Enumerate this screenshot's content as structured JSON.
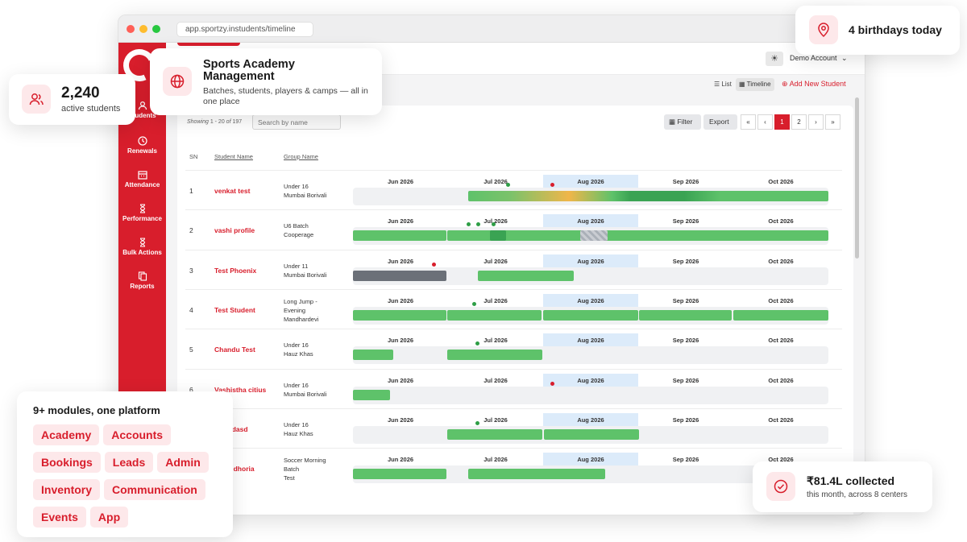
{
  "browser": {
    "url": "app.sportzy.instudents/timeline"
  },
  "sidebar": {
    "items": [
      {
        "label": "Students",
        "icon": "students-icon"
      },
      {
        "label": "Renewals",
        "icon": "clock-icon"
      },
      {
        "label": "Attendance",
        "icon": "calendar-icon"
      },
      {
        "label": "Performance",
        "icon": "hourglass-icon"
      },
      {
        "label": "Bulk Actions",
        "icon": "hourglass-icon"
      },
      {
        "label": "Reports",
        "icon": "copy-icon"
      }
    ]
  },
  "header": {
    "account": "Demo Account"
  },
  "viewbar": {
    "list": "List",
    "timeline": "Timeline",
    "add": "Add New Student"
  },
  "toolbar": {
    "showing_label": "Showing",
    "showing_range": "1 - 20",
    "showing_of": "of",
    "showing_total": "197",
    "search_placeholder": "Search by name",
    "filter": "Filter",
    "export": "Export",
    "pages": [
      "«",
      "‹",
      "1",
      "2",
      "›",
      "»"
    ]
  },
  "table": {
    "headers": {
      "sn": "SN",
      "name": "Student Name",
      "group": "Group Name"
    },
    "months": [
      "Jun 2026",
      "Jul 2026",
      "Aug 2026",
      "Sep 2026",
      "Oct 2026"
    ],
    "rows": [
      {
        "sn": "1",
        "name": "venkat test",
        "group": [
          "Under 16",
          "Mumbai Borivali"
        ]
      },
      {
        "sn": "2",
        "name": "vashi profile",
        "group": [
          "U6 Batch",
          "Cooperage"
        ]
      },
      {
        "sn": "3",
        "name": "Test Phoenix",
        "group": [
          "Under 11",
          "Mumbai Borivali"
        ]
      },
      {
        "sn": "4",
        "name": "Test Student",
        "group": [
          "Long Jump -",
          "Evening",
          "Mandhardevi"
        ]
      },
      {
        "sn": "5",
        "name": "Chandu Test",
        "group": [
          "Under 16",
          "Hauz Khas"
        ]
      },
      {
        "sn": "6",
        "name": "Vashistha citius",
        "group": [
          "Under 16",
          "Mumbai Borivali"
        ]
      },
      {
        "sn": "7",
        "name": "sd asdasd",
        "group": [
          "Under 16",
          "Hauz Khas"
        ]
      },
      {
        "sn": "8",
        "name": "an Dudhoria",
        "group": [
          "Soccer Morning",
          "Batch",
          "Test"
        ]
      }
    ]
  },
  "floating": {
    "students": {
      "value": "2,240",
      "label": "active students"
    },
    "academy": {
      "title": "Sports Academy Management",
      "subtitle": "Batches, students, players & camps — all in one place"
    },
    "birthdays": {
      "text": "4 birthdays today"
    },
    "modules": {
      "title": "9+ modules, one platform",
      "tags": [
        "Academy",
        "Accounts",
        "Bookings",
        "Leads",
        "Admin",
        "Inventory",
        "Communication",
        "Events",
        "App"
      ]
    },
    "collected": {
      "value": "₹81.4L collected",
      "label": "this month, across 8 centers"
    }
  },
  "colors": {
    "brand_red": "#d81e2c",
    "bar_green": "#5ec26a",
    "highlight_blue": "#dcebfa"
  }
}
